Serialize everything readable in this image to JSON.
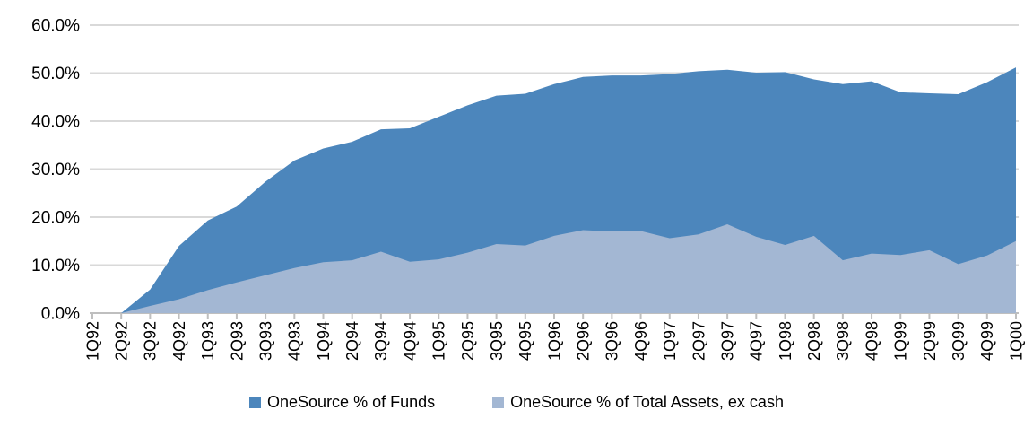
{
  "chart_data": {
    "type": "area",
    "title": "",
    "xlabel": "",
    "ylabel": "",
    "categories": [
      "1Q92",
      "2Q92",
      "3Q92",
      "4Q92",
      "1Q93",
      "2Q93",
      "3Q93",
      "4Q93",
      "1Q94",
      "2Q94",
      "3Q94",
      "4Q94",
      "1Q95",
      "2Q95",
      "3Q95",
      "4Q95",
      "1Q96",
      "2Q96",
      "3Q96",
      "4Q96",
      "1Q97",
      "2Q97",
      "3Q97",
      "4Q97",
      "1Q98",
      "2Q98",
      "3Q98",
      "4Q98",
      "1Q99",
      "2Q99",
      "3Q99",
      "4Q99",
      "1Q00"
    ],
    "series": [
      {
        "name": "OneSource % of Funds",
        "color": "#4C86BC",
        "values": [
          0.0,
          0.0,
          4.9,
          14.0,
          19.3,
          22.2,
          27.4,
          31.8,
          34.3,
          35.7,
          38.3,
          38.5,
          40.9,
          43.3,
          45.3,
          45.7,
          47.7,
          49.2,
          49.5,
          49.5,
          49.8,
          50.4,
          50.7,
          50.1,
          50.2,
          48.7,
          47.7,
          48.3,
          46.0,
          45.8,
          45.6,
          48.1,
          51.2
        ]
      },
      {
        "name": "OneSource % of Total Assets, ex cash",
        "color": "#A3B7D3",
        "values": [
          0.0,
          0.0,
          1.5,
          2.9,
          4.8,
          6.4,
          7.9,
          9.4,
          10.6,
          11.0,
          12.8,
          10.7,
          11.2,
          12.6,
          14.4,
          14.1,
          16.1,
          17.3,
          17.0,
          17.1,
          15.6,
          16.4,
          18.5,
          15.9,
          14.2,
          16.1,
          11.0,
          12.4,
          12.1,
          13.1,
          10.2,
          12.0,
          15.0
        ]
      }
    ],
    "ylim": [
      0,
      60
    ],
    "y_tick_step": 10,
    "y_tick_labels": [
      "0.0%",
      "10.0%",
      "20.0%",
      "30.0%",
      "40.0%",
      "50.0%",
      "60.0%"
    ],
    "grid": true,
    "legend_position": "bottom"
  },
  "colors": {
    "background": "#FFFFFF",
    "gridline": "#D9D9D9",
    "axis": "#BFBFBF",
    "text": "#000000",
    "series_funds": "#4C86BC",
    "series_assets": "#A3B7D3"
  }
}
